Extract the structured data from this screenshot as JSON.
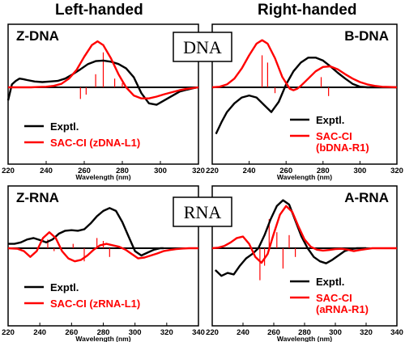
{
  "headers": {
    "left": "Left-handed",
    "right": "Right-handed"
  },
  "center_labels": {
    "dna": "DNA",
    "rna": "RNA"
  },
  "colors": {
    "exptl": "#000000",
    "calc": "#ff0000",
    "axis": "#000000"
  },
  "chart_data": [
    {
      "type": "line",
      "title": "Z-DNA",
      "xlabel": "Wavelength (nm)",
      "xlim": [
        220,
        320
      ],
      "xticks": [
        220,
        240,
        260,
        280,
        300,
        320
      ],
      "legend_placement": "bottom-left",
      "series": [
        {
          "name": "Exptl.",
          "x": [
            220,
            222,
            224,
            226,
            228,
            230,
            234,
            238,
            242,
            246,
            250,
            254,
            258,
            262,
            266,
            270,
            274,
            278,
            282,
            286,
            290,
            294,
            298,
            302,
            306,
            310,
            314,
            318,
            320
          ],
          "y": [
            -0.45,
            0.1,
            0.22,
            0.3,
            0.28,
            0.25,
            0.2,
            0.18,
            0.2,
            0.22,
            0.3,
            0.45,
            0.62,
            0.8,
            0.9,
            0.92,
            0.88,
            0.8,
            0.65,
            0.35,
            -0.2,
            -0.55,
            -0.6,
            -0.45,
            -0.3,
            -0.15,
            -0.08,
            -0.02,
            0
          ]
        },
        {
          "name": "SAC-CI (zDNA-L1)",
          "x": [
            220,
            224,
            228,
            232,
            236,
            240,
            244,
            248,
            252,
            256,
            260,
            264,
            267,
            270,
            274,
            278,
            282,
            286,
            290,
            294,
            298,
            302,
            306,
            310,
            314,
            318,
            320
          ],
          "y": [
            0,
            0,
            0,
            0,
            0.01,
            0.02,
            0.05,
            0.12,
            0.3,
            0.6,
            1.05,
            1.45,
            1.58,
            1.45,
            1.0,
            0.45,
            0.0,
            -0.28,
            -0.38,
            -0.38,
            -0.32,
            -0.24,
            -0.17,
            -0.1,
            -0.05,
            -0.02,
            0
          ]
        }
      ],
      "sticks": [
        {
          "x": 258,
          "y": -0.4
        },
        {
          "x": 261,
          "y": -0.25
        },
        {
          "x": 266,
          "y": 0.45
        },
        {
          "x": 270,
          "y": 1.2
        },
        {
          "x": 276,
          "y": 0.3
        },
        {
          "x": 280,
          "y": 0.15
        }
      ]
    },
    {
      "type": "line",
      "title": "B-DNA",
      "xlabel": "Wavelength (nm)",
      "xlim": [
        220,
        320
      ],
      "xticks": [
        220,
        240,
        260,
        280,
        300,
        320
      ],
      "legend_placement": "bottom-right",
      "series": [
        {
          "name": "Exptl.",
          "x": [
            222,
            225,
            228,
            232,
            236,
            240,
            244,
            248,
            252,
            256,
            260,
            264,
            268,
            272,
            276,
            280,
            284,
            288,
            292,
            296,
            300,
            304,
            308,
            312,
            316,
            320
          ],
          "y": [
            -1.6,
            -1.2,
            -0.85,
            -0.55,
            -0.35,
            -0.28,
            -0.35,
            -0.6,
            -0.85,
            -0.5,
            0.1,
            0.55,
            0.85,
            1.02,
            1.02,
            0.92,
            0.72,
            0.5,
            0.3,
            0.12,
            0.02,
            0,
            0,
            0,
            0,
            0
          ]
        },
        {
          "name": "SAC-CI (bDNA-R1)",
          "x": [
            220,
            224,
            228,
            232,
            236,
            240,
            244,
            247,
            250,
            254,
            258,
            262,
            264,
            266,
            268,
            272,
            276,
            280,
            284,
            288,
            292,
            296,
            300,
            304,
            308,
            312,
            316,
            320
          ],
          "y": [
            0,
            0.02,
            0.1,
            0.3,
            0.65,
            1.1,
            1.5,
            1.62,
            1.5,
            1.0,
            0.35,
            -0.05,
            -0.1,
            -0.05,
            0.05,
            0.3,
            0.55,
            0.7,
            0.72,
            0.62,
            0.45,
            0.3,
            0.18,
            0.1,
            0.05,
            0.02,
            0.01,
            0
          ]
        }
      ],
      "sticks": [
        {
          "x": 247,
          "y": 1.1
        },
        {
          "x": 250,
          "y": 0.85
        },
        {
          "x": 254,
          "y": -0.2
        },
        {
          "x": 279,
          "y": 0.35
        },
        {
          "x": 283,
          "y": -0.3
        }
      ]
    },
    {
      "type": "line",
      "title": "Z-RNA",
      "xlabel": "Wavelength (nm)",
      "xlim": [
        220,
        340
      ],
      "xticks": [
        220,
        240,
        260,
        280,
        300,
        320,
        340
      ],
      "legend_placement": "bottom-left",
      "series": [
        {
          "name": "Exptl.",
          "x": [
            220,
            224,
            228,
            232,
            236,
            240,
            244,
            248,
            252,
            256,
            260,
            264,
            268,
            272,
            276,
            280,
            284,
            288,
            292,
            296,
            300,
            304,
            308,
            312,
            316,
            318
          ],
          "y": [
            0.15,
            0.15,
            0.2,
            0.3,
            0.35,
            0.28,
            0.2,
            0.3,
            0.5,
            0.6,
            0.62,
            0.6,
            0.65,
            0.85,
            1.1,
            1.28,
            1.38,
            1.28,
            0.9,
            0.4,
            -0.1,
            -0.25,
            -0.15,
            -0.05,
            0,
            0
          ]
        },
        {
          "name": "SAC-CI (zRNA-L1)",
          "x": [
            220,
            226,
            230,
            234,
            238,
            242,
            246,
            250,
            254,
            258,
            262,
            266,
            270,
            274,
            278,
            282,
            286,
            290,
            294,
            298,
            302,
            306,
            310,
            314,
            318,
            322,
            326,
            330,
            334,
            338,
            340
          ],
          "y": [
            0,
            -0.02,
            -0.1,
            -0.3,
            -0.1,
            0.35,
            0.55,
            0.35,
            -0.1,
            -0.35,
            -0.45,
            -0.4,
            -0.25,
            -0.05,
            0.1,
            0.15,
            0.1,
            0.05,
            -0.05,
            -0.2,
            -0.35,
            -0.32,
            -0.25,
            -0.18,
            -0.1,
            -0.06,
            -0.03,
            -0.01,
            0,
            0,
            0
          ]
        }
      ],
      "sticks": [
        {
          "x": 245,
          "y": 0.3
        },
        {
          "x": 249,
          "y": -0.1
        },
        {
          "x": 261,
          "y": 0.15
        },
        {
          "x": 268,
          "y": -0.45
        },
        {
          "x": 276,
          "y": 0.35
        },
        {
          "x": 280,
          "y": 0.25
        },
        {
          "x": 284,
          "y": -0.3
        }
      ]
    },
    {
      "type": "line",
      "title": "A-RNA",
      "xlabel": "Wavelength (nm)",
      "xlim": [
        220,
        340
      ],
      "xticks": [
        220,
        240,
        260,
        280,
        300,
        320,
        340
      ],
      "legend_placement": "bottom-right",
      "series": [
        {
          "name": "Exptl.",
          "x": [
            222,
            226,
            230,
            234,
            238,
            242,
            246,
            250,
            254,
            258,
            262,
            266,
            270,
            274,
            278,
            282,
            286,
            290,
            294,
            298,
            302,
            306,
            310,
            314,
            318,
            320
          ],
          "y": [
            -0.75,
            -0.95,
            -0.85,
            -0.9,
            -0.6,
            -0.35,
            -0.2,
            0,
            0.45,
            1.0,
            1.45,
            1.65,
            1.5,
            0.95,
            0.4,
            0,
            -0.3,
            -0.45,
            -0.52,
            -0.4,
            -0.25,
            -0.1,
            -0.03,
            0,
            0,
            0
          ]
        },
        {
          "name": "SAC-CI (aRNA-R1)",
          "x": [
            220,
            224,
            228,
            232,
            236,
            240,
            244,
            248,
            252,
            256,
            260,
            264,
            268,
            272,
            276,
            280,
            284,
            288,
            292,
            296,
            300,
            304,
            308,
            312,
            316,
            320,
            324,
            328,
            332,
            336,
            340
          ],
          "y": [
            0,
            0.02,
            0.08,
            0.2,
            0.35,
            0.4,
            0.15,
            -0.3,
            -0.5,
            -0.2,
            0.5,
            1.15,
            1.45,
            1.25,
            0.75,
            0.3,
            0.05,
            -0.05,
            -0.08,
            -0.06,
            -0.03,
            -0.02,
            -0.05,
            -0.1,
            -0.06,
            -0.03,
            0,
            0,
            0,
            0,
            0
          ]
        }
      ],
      "sticks": [
        {
          "x": 251,
          "y": -1.1
        },
        {
          "x": 254,
          "y": -0.6
        },
        {
          "x": 257,
          "y": 1.0
        },
        {
          "x": 262,
          "y": 0.55
        },
        {
          "x": 266,
          "y": -0.7
        },
        {
          "x": 270,
          "y": 0.45
        },
        {
          "x": 274,
          "y": -0.3
        }
      ]
    }
  ]
}
